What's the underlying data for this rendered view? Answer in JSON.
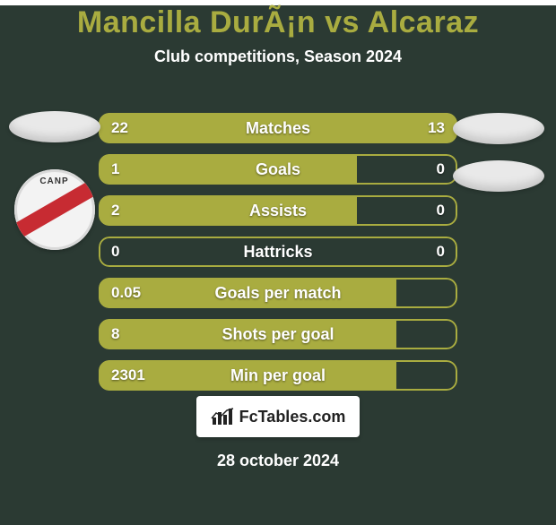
{
  "background_color": "#2b3a33",
  "title": {
    "text": "Mancilla DurÃ¡n vs Alcaraz",
    "fontsize": 34,
    "color": "#a9ac40"
  },
  "subtitle": {
    "text": "Club competitions, Season 2024",
    "fontsize": 18,
    "color": "#ffffff"
  },
  "left_logos": {
    "ellipse_color": "#e9e9e9",
    "club_badge": {
      "stripe_color": "#c72b32",
      "label": "CANP"
    }
  },
  "right_logos": {
    "ellipse_colors": [
      "#e9e9e9",
      "#e9e9e9"
    ]
  },
  "bars": {
    "full_color": "#a9ac40",
    "outline_color": "#a9ac40",
    "empty_bg": "rgba(169,172,64,0.0)",
    "value_fontsize": 17,
    "label_fontsize": 18,
    "value_color": "#ffffff",
    "rows": [
      {
        "label": "Matches",
        "left": "22",
        "right": "13",
        "left_pct": 63,
        "right_pct": 37
      },
      {
        "label": "Goals",
        "left": "1",
        "right": "0",
        "left_pct": 72,
        "right_pct": 0
      },
      {
        "label": "Assists",
        "left": "2",
        "right": "0",
        "left_pct": 72,
        "right_pct": 0
      },
      {
        "label": "Hattricks",
        "left": "0",
        "right": "0",
        "left_pct": 0,
        "right_pct": 0
      },
      {
        "label": "Goals per match",
        "left": "0.05",
        "right": "",
        "left_pct": 83,
        "right_pct": 0
      },
      {
        "label": "Shots per goal",
        "left": "8",
        "right": "",
        "left_pct": 83,
        "right_pct": 0
      },
      {
        "label": "Min per goal",
        "left": "2301",
        "right": "",
        "left_pct": 83,
        "right_pct": 0
      }
    ]
  },
  "footer": {
    "brand_text": "FcTables.com",
    "brand_fontsize": 18,
    "icon_color": "#222222",
    "date": "28 october 2024",
    "date_color": "#ffffff"
  }
}
